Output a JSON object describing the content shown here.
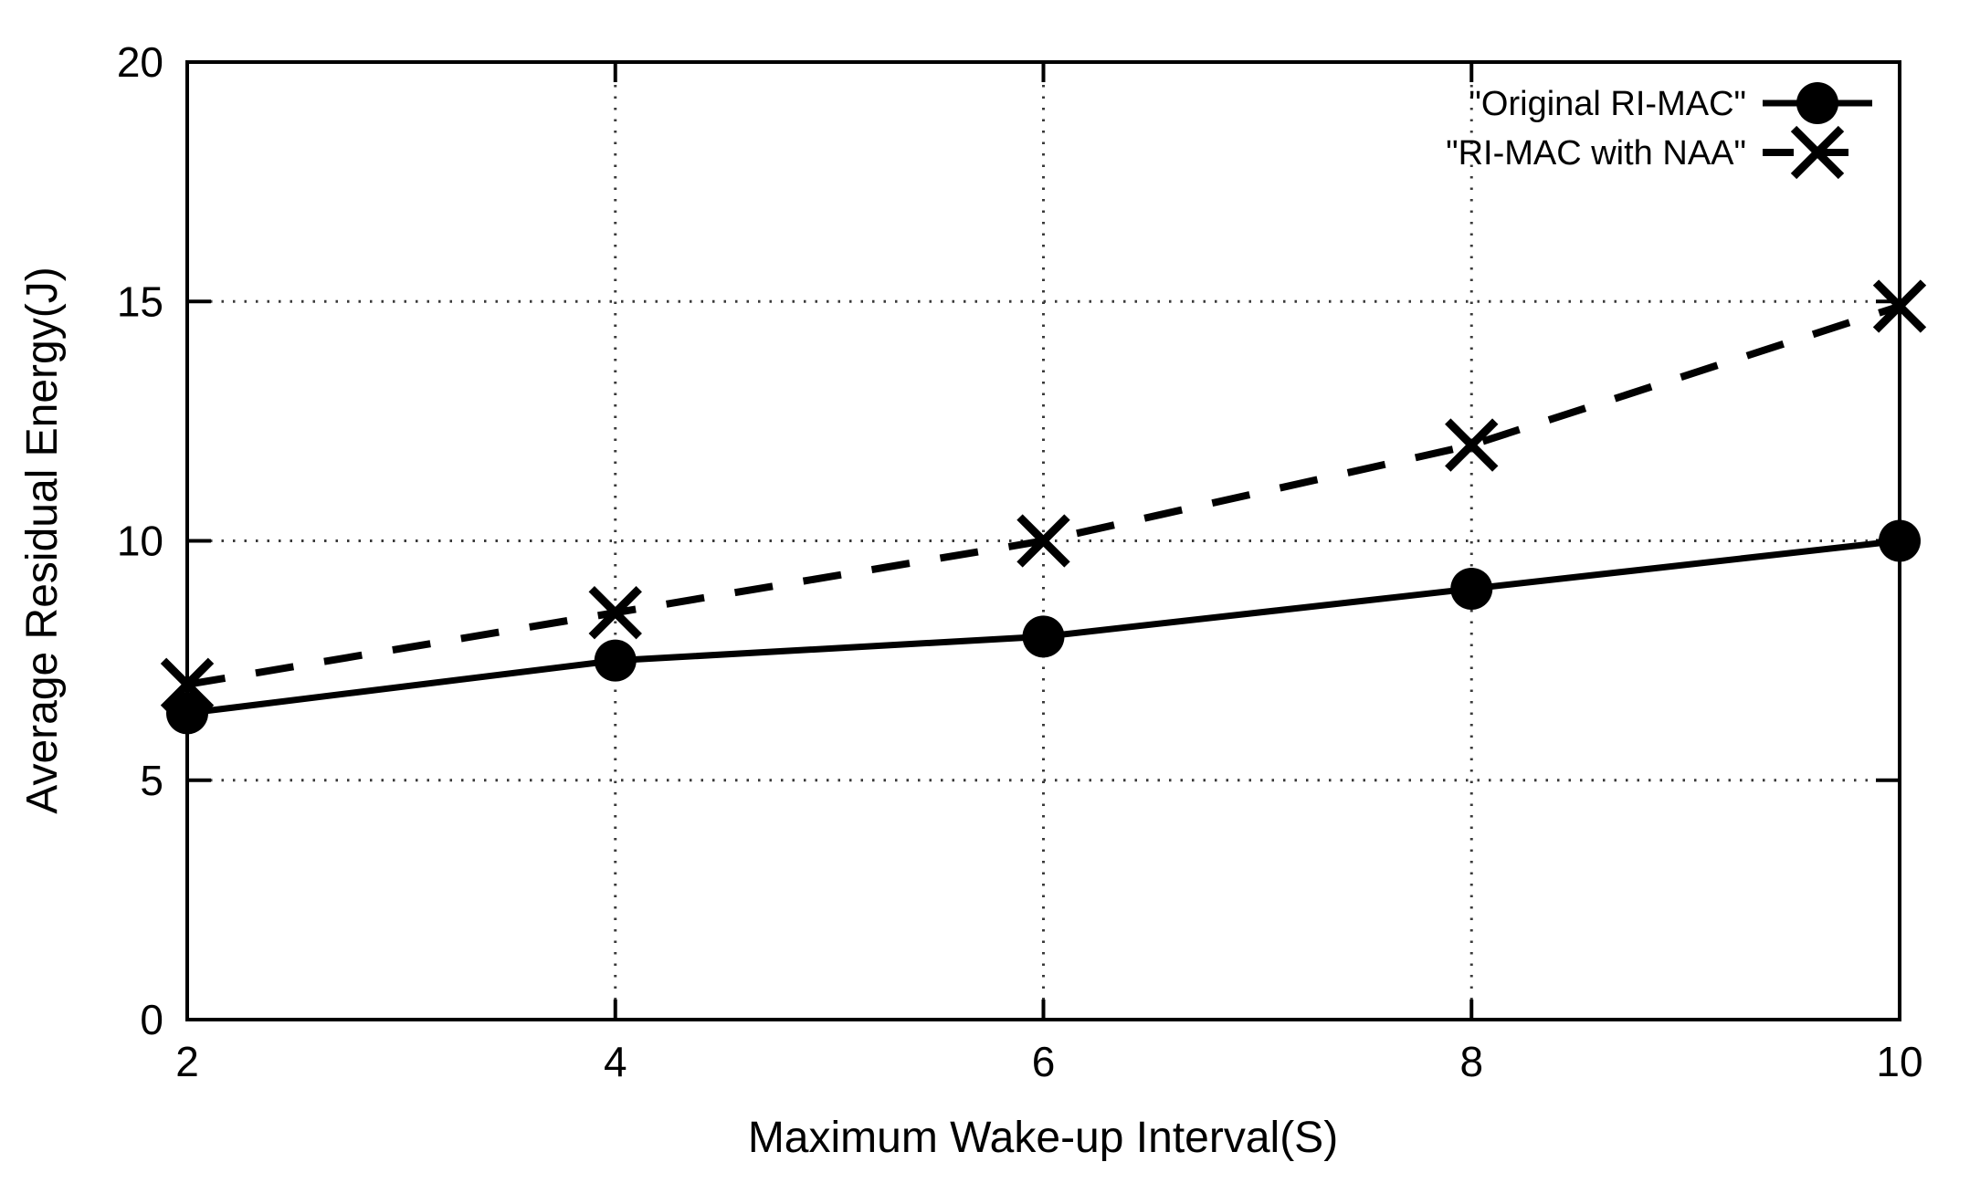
{
  "figure": {
    "background_color": "#ffffff",
    "foreground_color": "#000000",
    "grid_color": "#3a3a3a"
  },
  "chart_data": {
    "type": "line",
    "title": "",
    "xlabel": "Maximum Wake-up Interval(S)",
    "ylabel": "Average Residual Energy(J)",
    "x": [
      2,
      4,
      6,
      8,
      10
    ],
    "xlim": [
      2,
      10
    ],
    "ylim": [
      0,
      20
    ],
    "xticks": [
      2,
      4,
      6,
      8,
      10
    ],
    "yticks": [
      0,
      5,
      10,
      15,
      20
    ],
    "grid": "dotted, at interior ticks",
    "legend_position": "top-right-inside",
    "series": [
      {
        "name": "\"Original RI-MAC\"",
        "values": [
          6.4,
          7.5,
          8,
          9,
          10
        ],
        "line_style": "solid",
        "marker": "circle",
        "color": "#000000"
      },
      {
        "name": "\"RI-MAC with NAA\"",
        "values": [
          7,
          8.5,
          10,
          12,
          14.9
        ],
        "line_style": "dashed",
        "marker": "x",
        "color": "#000000"
      }
    ]
  }
}
